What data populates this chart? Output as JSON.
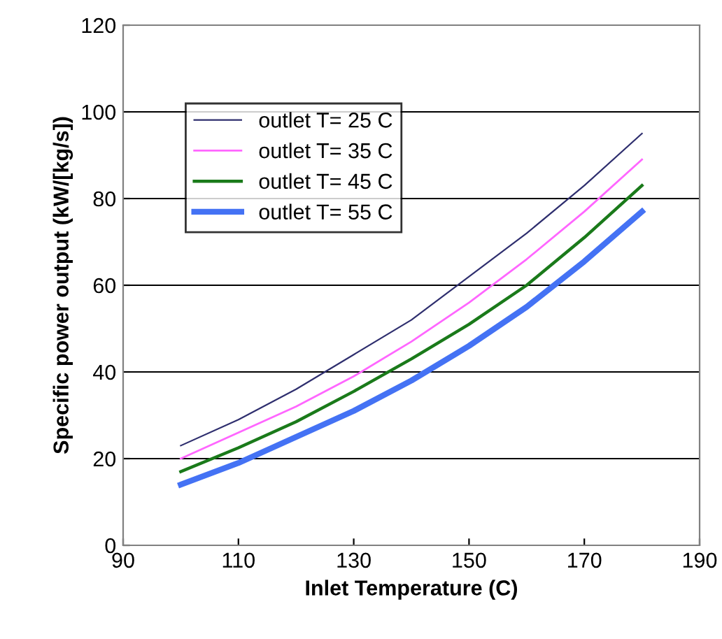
{
  "chart_data": {
    "type": "line",
    "xlabel": "Inlet Temperature (C)",
    "ylabel": "Specific power output (kW/[kg/s])",
    "x": [
      100,
      110,
      120,
      130,
      140,
      150,
      160,
      170,
      180
    ],
    "series": [
      {
        "name": "outlet T= 25 C",
        "color": "#2e2e6e",
        "values": [
          23,
          29,
          36,
          44,
          52,
          62,
          72,
          83,
          95
        ]
      },
      {
        "name": "outlet T= 35 C",
        "color": "#ff66ff",
        "values": [
          20,
          26,
          32,
          39,
          47,
          56,
          66,
          77,
          89
        ]
      },
      {
        "name": "outlet T= 45 C",
        "color": "#1a7a1a",
        "values": [
          17,
          22.5,
          28.5,
          35.5,
          43,
          51,
          60,
          71,
          83
        ]
      },
      {
        "name": "outlet T= 55 C",
        "color": "#4472f4",
        "values": [
          14,
          19,
          25,
          31,
          38,
          46,
          55,
          65.5,
          77
        ]
      }
    ],
    "xlim": [
      90,
      190
    ],
    "xticks": [
      90,
      110,
      130,
      150,
      170,
      190
    ],
    "ylim": [
      0,
      120
    ],
    "yticks": [
      0,
      20,
      40,
      60,
      80,
      100,
      120
    ],
    "grid": "y",
    "legend": "top left",
    "marker": "none",
    "line_style": "solid"
  }
}
